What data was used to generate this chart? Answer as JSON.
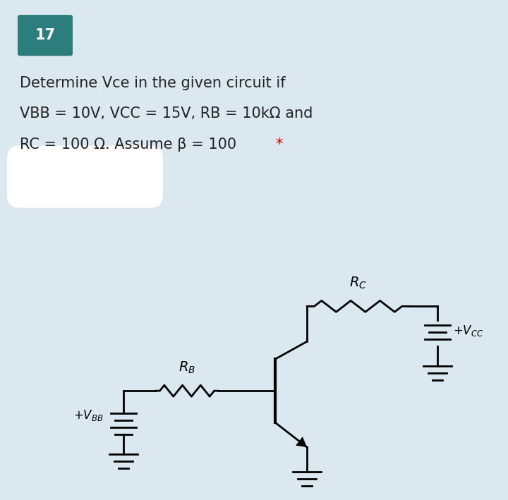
{
  "bg_top": "#dce8f0",
  "bg_bottom": "#ffffff",
  "num_box_color": "#2d7d7d",
  "num_text": "17",
  "title_line1": "Determine Vce in the given circuit if",
  "title_line2": "VBB = 10V, VCC = 15V, RB = 10kΩ and",
  "title_line3": "RC = 100 Ω. Assume β = 100  ",
  "star_color": "#cc0000",
  "text_color": "#222222",
  "title_fontsize": 15.0,
  "circuit_bg": "#f5f5f5"
}
